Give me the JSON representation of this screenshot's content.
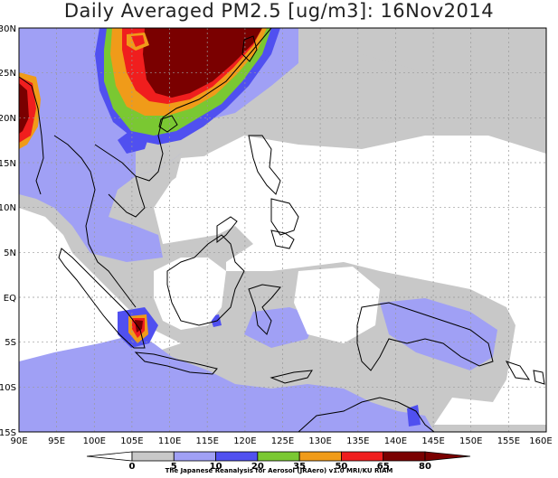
{
  "title": "Daily Averaged PM2.5 [ug/m3]: 16Nov2014",
  "lat_labels": [
    "30N",
    "25N",
    "20N",
    "15N",
    "10N",
    "5N",
    "EQ",
    "5S",
    "10S",
    "15S"
  ],
  "lon_labels": [
    "90E",
    "95E",
    "100E",
    "105E",
    "110E",
    "115E",
    "120E",
    "125E",
    "130E",
    "135E",
    "140E",
    "145E",
    "150E",
    "155E",
    "160E"
  ],
  "colorbar": {
    "ticks": [
      "0",
      "5",
      "10",
      "20",
      "35",
      "50",
      "65",
      "80"
    ],
    "colors": [
      "#ffffff",
      "#c8c8c8",
      "#a0a0f5",
      "#5050f0",
      "#7ac832",
      "#f09b19",
      "#f01e1e",
      "#7a0000"
    ]
  },
  "credit": "The Japanese Reanalysis for Aerosol (JRAero) v1.0 MRI/KU RIAM"
}
